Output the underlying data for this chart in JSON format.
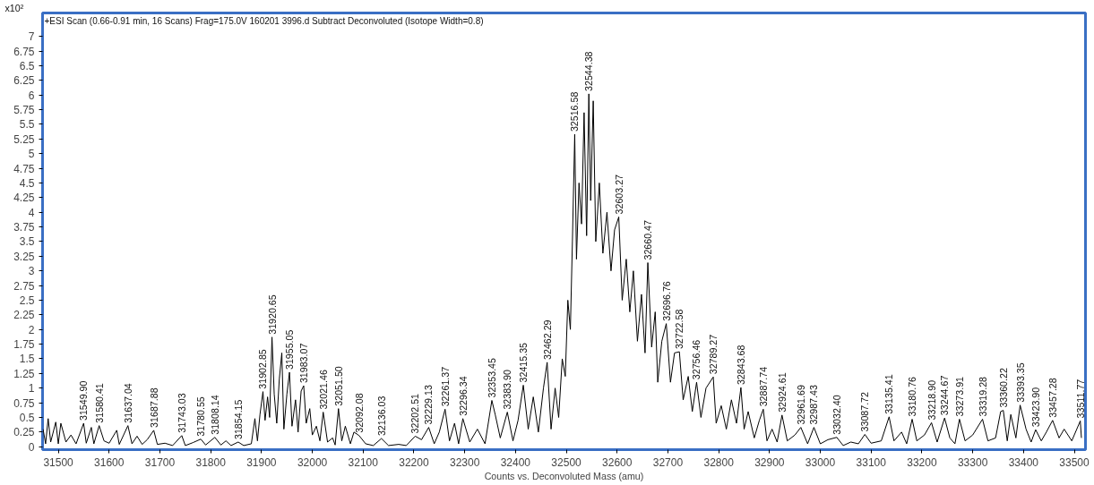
{
  "chart_data": {
    "type": "line",
    "title": "+ESI Scan (0.66-0.91 min, 16 Scans) Frag=175.0V 160201  3996.d  Subtract Deconvoluted (Isotope Width=0.8)",
    "xlabel": "Counts vs. Deconvoluted Mass (amu)",
    "ylabel": "x10²",
    "x": [
      31470,
      31475,
      31480,
      31485,
      31495,
      31500,
      31505,
      31515,
      31525,
      31535,
      31549.9,
      31555,
      31565,
      31570,
      31580.41,
      31590,
      31600,
      31615,
      31620,
      31637.04,
      31645,
      31655,
      31665,
      31675,
      31687.88,
      31695,
      31710,
      31725,
      31743.03,
      31750,
      31765,
      31780.55,
      31790,
      31808.14,
      31820,
      31830,
      31840,
      31854.15,
      31865,
      31880,
      31887,
      31892,
      31897,
      31902.85,
      31907,
      31912,
      31916,
      31920.65,
      31925,
      31930,
      31935,
      31940,
      31944,
      31950,
      31955.05,
      31960,
      31967,
      31972,
      31978,
      31983.07,
      31988,
      31995,
      32000,
      32008,
      32015,
      32021.46,
      32030,
      32040,
      32045,
      32051.5,
      32058,
      32065,
      32075,
      32082,
      32092.08,
      32105,
      32120,
      32136.03,
      32150,
      32170,
      32185,
      32202.51,
      32215,
      32229.13,
      32240,
      32250,
      32261.37,
      32270,
      32280,
      32288,
      32296.34,
      32310,
      32325,
      32340,
      32353.45,
      32360,
      32370,
      32383.9,
      32395,
      32405,
      32415.35,
      32425,
      32435,
      32445,
      32455,
      32462.29,
      32470,
      32478,
      32485,
      32492,
      32498,
      32503,
      32508,
      32512,
      32516.58,
      32520,
      32525,
      32530,
      32535,
      32540,
      32544.38,
      32548,
      32553,
      32558,
      32565,
      32572,
      32580,
      32588,
      32595,
      32603.27,
      32610,
      32618,
      32625,
      32632,
      32640,
      32648,
      32655,
      32660.47,
      32668,
      32675,
      32680,
      32688,
      32696.76,
      32705,
      32713,
      32722.58,
      32730,
      32740,
      32748,
      32756.46,
      32765,
      32775,
      32789.27,
      32795,
      32805,
      32815,
      32825,
      32835,
      32843.68,
      32850,
      32858,
      32870,
      32880,
      32887.74,
      32895,
      32905,
      32915,
      32924.61,
      32935,
      32950,
      32961.69,
      32975,
      32987.43,
      33000,
      33015,
      33032.4,
      33045,
      33060,
      33075,
      33087.72,
      33100,
      33120,
      33135.41,
      33145,
      33160,
      33170,
      33180.76,
      33190,
      33205,
      33218.9,
      33230,
      33244.67,
      33255,
      33265,
      33273.91,
      33285,
      33300,
      33319.28,
      33330,
      33345,
      33355,
      33360.22,
      33368,
      33375,
      33385,
      33393.35,
      33405,
      33415,
      33423.9,
      33435,
      33445,
      33457.28,
      33470,
      33480,
      33495,
      33511.77,
      33514
    ],
    "series": [
      {
        "color": "#000000",
        "values": [
          0.3,
          0.05,
          0.48,
          0.08,
          0.42,
          0.05,
          0.4,
          0.08,
          0.2,
          0.05,
          0.4,
          0.06,
          0.33,
          0.05,
          0.36,
          0.1,
          0.06,
          0.28,
          0.04,
          0.36,
          0.05,
          0.18,
          0.04,
          0.12,
          0.28,
          0.04,
          0.06,
          0.02,
          0.19,
          0.02,
          0.07,
          0.13,
          0.03,
          0.16,
          0.03,
          0.1,
          0.02,
          0.08,
          0.02,
          0.05,
          0.48,
          0.1,
          0.55,
          0.94,
          0.45,
          0.85,
          0.5,
          1.87,
          0.9,
          0.4,
          1.15,
          1.6,
          0.3,
          0.9,
          1.27,
          0.35,
          0.8,
          0.25,
          0.95,
          1.04,
          0.4,
          0.65,
          0.2,
          0.35,
          0.1,
          0.59,
          0.08,
          0.15,
          0.03,
          0.65,
          0.1,
          0.35,
          0.05,
          0.25,
          0.19,
          0.05,
          0.02,
          0.14,
          0.02,
          0.04,
          0.02,
          0.18,
          0.12,
          0.33,
          0.05,
          0.25,
          0.64,
          0.1,
          0.4,
          0.05,
          0.48,
          0.08,
          0.3,
          0.05,
          0.79,
          0.55,
          0.15,
          0.59,
          0.1,
          0.45,
          1.05,
          0.3,
          0.85,
          0.25,
          1.0,
          1.44,
          0.3,
          1.0,
          0.5,
          1.5,
          1.2,
          2.5,
          2.0,
          3.5,
          5.33,
          3.2,
          4.5,
          3.8,
          5.7,
          3.6,
          6.02,
          4.2,
          5.9,
          3.5,
          4.5,
          3.3,
          4.0,
          3.0,
          3.7,
          3.92,
          2.5,
          3.2,
          2.3,
          3.0,
          1.8,
          2.6,
          1.6,
          3.14,
          1.7,
          2.3,
          1.1,
          1.8,
          2.1,
          1.1,
          1.6,
          1.62,
          0.8,
          1.2,
          0.6,
          1.1,
          0.5,
          1.0,
          1.19,
          0.4,
          0.7,
          0.3,
          0.8,
          0.4,
          1.01,
          0.3,
          0.6,
          0.15,
          0.45,
          0.64,
          0.1,
          0.3,
          0.08,
          0.54,
          0.1,
          0.2,
          0.33,
          0.05,
          0.33,
          0.05,
          0.12,
          0.16,
          0.02,
          0.08,
          0.05,
          0.21,
          0.06,
          0.1,
          0.51,
          0.1,
          0.25,
          0.05,
          0.47,
          0.1,
          0.2,
          0.41,
          0.08,
          0.49,
          0.15,
          0.05,
          0.47,
          0.1,
          0.2,
          0.47,
          0.1,
          0.15,
          0.6,
          0.62,
          0.1,
          0.55,
          0.15,
          0.71,
          0.3,
          0.08,
          0.29,
          0.1,
          0.25,
          0.45,
          0.15,
          0.3,
          0.1,
          0.44,
          0.15
        ]
      }
    ],
    "xlim": [
      31469,
      33522
    ],
    "ylim": [
      -0.05,
      7.4
    ],
    "xticks": [
      31500,
      31600,
      31700,
      31800,
      31900,
      32000,
      32100,
      32200,
      32300,
      32400,
      32500,
      32600,
      32700,
      32800,
      32900,
      33000,
      33100,
      33200,
      33300,
      33400,
      33500
    ],
    "yticks": [
      0,
      0.25,
      0.5,
      0.75,
      1,
      1.25,
      1.5,
      1.75,
      2,
      2.25,
      2.5,
      2.75,
      3,
      3.25,
      3.5,
      3.75,
      4,
      4.25,
      4.5,
      4.75,
      5,
      5.25,
      5.5,
      5.75,
      6,
      6.25,
      6.5,
      6.75,
      7
    ],
    "grid": false,
    "annotations": [
      {
        "text": "31549.90",
        "x": 31549.9,
        "y": 0.4
      },
      {
        "text": "31580.41",
        "x": 31580.41,
        "y": 0.36
      },
      {
        "text": "31637.04",
        "x": 31637.04,
        "y": 0.36
      },
      {
        "text": "31687.88",
        "x": 31687.88,
        "y": 0.28
      },
      {
        "text": "31743.03",
        "x": 31743.03,
        "y": 0.19
      },
      {
        "text": "31780.55",
        "x": 31780.55,
        "y": 0.13
      },
      {
        "text": "31808.14",
        "x": 31808.14,
        "y": 0.16
      },
      {
        "text": "31854.15",
        "x": 31854.15,
        "y": 0.08
      },
      {
        "text": "31902.85",
        "x": 31902.85,
        "y": 0.94
      },
      {
        "text": "31920.65",
        "x": 31920.65,
        "y": 1.87
      },
      {
        "text": "31955.05",
        "x": 31955.05,
        "y": 1.27
      },
      {
        "text": "31983.07",
        "x": 31983.07,
        "y": 1.04
      },
      {
        "text": "32021.46",
        "x": 32021.46,
        "y": 0.59
      },
      {
        "text": "32051.50",
        "x": 32051.5,
        "y": 0.65
      },
      {
        "text": "32092.08",
        "x": 32092.08,
        "y": 0.19
      },
      {
        "text": "32136.03",
        "x": 32136.03,
        "y": 0.14
      },
      {
        "text": "32202.51",
        "x": 32202.51,
        "y": 0.18
      },
      {
        "text": "32229.13",
        "x": 32229.13,
        "y": 0.33
      },
      {
        "text": "32261.37",
        "x": 32261.37,
        "y": 0.64
      },
      {
        "text": "32296.34",
        "x": 32296.34,
        "y": 0.48
      },
      {
        "text": "32353.45",
        "x": 32353.45,
        "y": 0.79
      },
      {
        "text": "32383.90",
        "x": 32383.9,
        "y": 0.59
      },
      {
        "text": "32415.35",
        "x": 32415.35,
        "y": 1.05
      },
      {
        "text": "32462.29",
        "x": 32462.29,
        "y": 1.44
      },
      {
        "text": "32516.58",
        "x": 32516.58,
        "y": 5.33
      },
      {
        "text": "32544.38",
        "x": 32544.38,
        "y": 6.02
      },
      {
        "text": "32603.27",
        "x": 32603.27,
        "y": 3.92
      },
      {
        "text": "32660.47",
        "x": 32660.47,
        "y": 3.14
      },
      {
        "text": "32696.76",
        "x": 32696.76,
        "y": 2.1
      },
      {
        "text": "32722.58",
        "x": 32722.58,
        "y": 1.62
      },
      {
        "text": "32756.46",
        "x": 32756.46,
        "y": 1.1
      },
      {
        "text": "32789.27",
        "x": 32789.27,
        "y": 1.19
      },
      {
        "text": "32843.68",
        "x": 32843.68,
        "y": 1.01
      },
      {
        "text": "32887.74",
        "x": 32887.74,
        "y": 0.64
      },
      {
        "text": "32924.61",
        "x": 32924.61,
        "y": 0.54
      },
      {
        "text": "32961.69",
        "x": 32961.69,
        "y": 0.33
      },
      {
        "text": "32987.43",
        "x": 32987.43,
        "y": 0.33
      },
      {
        "text": "33032.40",
        "x": 33032.4,
        "y": 0.16
      },
      {
        "text": "33087.72",
        "x": 33087.72,
        "y": 0.21
      },
      {
        "text": "33135.41",
        "x": 33135.41,
        "y": 0.51
      },
      {
        "text": "33180.76",
        "x": 33180.76,
        "y": 0.47
      },
      {
        "text": "33218.90",
        "x": 33218.9,
        "y": 0.41
      },
      {
        "text": "33244.67",
        "x": 33244.67,
        "y": 0.49
      },
      {
        "text": "33273.91",
        "x": 33273.91,
        "y": 0.47
      },
      {
        "text": "33319.28",
        "x": 33319.28,
        "y": 0.47
      },
      {
        "text": "33360.22",
        "x": 33360.22,
        "y": 0.62
      },
      {
        "text": "33393.35",
        "x": 33393.35,
        "y": 0.71
      },
      {
        "text": "33423.90",
        "x": 33423.9,
        "y": 0.29
      },
      {
        "text": "33457.28",
        "x": 33457.28,
        "y": 0.45
      },
      {
        "text": "33511.77",
        "x": 33511.77,
        "y": 0.44
      }
    ]
  }
}
